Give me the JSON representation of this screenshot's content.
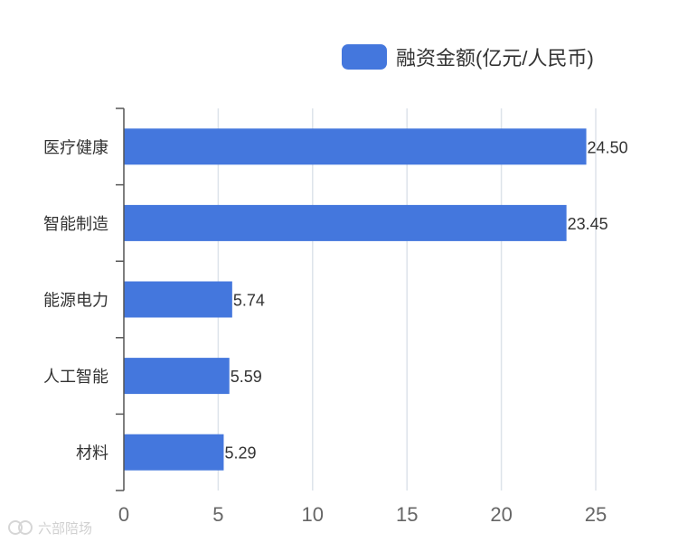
{
  "chart_data": {
    "type": "bar",
    "orientation": "horizontal",
    "categories": [
      "医疗健康",
      "智能制造",
      "能源电力",
      "人工智能",
      "材料"
    ],
    "series": [
      {
        "name": "融资金额(亿元/人民币)",
        "values": [
          24.5,
          23.45,
          5.74,
          5.59,
          5.29
        ]
      }
    ],
    "value_labels": [
      "24.50",
      "23.45",
      "5.74",
      "5.59",
      "5.29"
    ],
    "x_ticks": [
      "0",
      "5",
      "10",
      "15",
      "20",
      "25"
    ],
    "xlim": [
      0,
      25
    ],
    "grid": true,
    "legend_position": "top-right",
    "bar_color": "#4477dd"
  },
  "watermark": {
    "text": "六部陪场"
  }
}
